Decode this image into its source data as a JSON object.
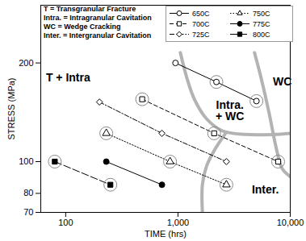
{
  "chart_data": {
    "type": "line",
    "xlabel": "TIME (hrs)",
    "ylabel": "STRESS (MPa)",
    "log": true,
    "grid": false,
    "legend": "top-right",
    "xlim": [
      60,
      10000
    ],
    "xticks": [
      100,
      {
        "value": 1000,
        "label": "1,000"
      },
      {
        "value": 10000,
        "label": "10,000"
      }
    ],
    "ylim": [
      70,
      300
    ],
    "yticks": [
      70,
      80,
      100,
      200
    ],
    "key": [
      "T = Transgranular Fracture",
      "Intra. = Intragranular Cavitation",
      "WC = Wedge Cracking",
      "Inter. = Intergranular Cavitation"
    ],
    "series": [
      {
        "name": "650C",
        "color": "#000000",
        "marker": "open-circle",
        "line_style": "solid",
        "x": [
          950,
          2200,
          5000
        ],
        "values": [
          200,
          175,
          153
        ],
        "circled": [
          false,
          true,
          true
        ]
      },
      {
        "name": "700C",
        "color": "#000000",
        "marker": "open-square",
        "line_style": "dashed",
        "x": [
          480,
          2100,
          7800
        ],
        "values": [
          155,
          122,
          100
        ],
        "circled": [
          true,
          true,
          true
        ]
      },
      {
        "name": "725C",
        "color": "#000000",
        "marker": "open-diamond",
        "line_style": "dashdot",
        "x": [
          200,
          720,
          2700
        ],
        "values": [
          152,
          122,
          100
        ],
        "circled": [
          false,
          false,
          false
        ]
      },
      {
        "name": "750C",
        "color": "#000000",
        "marker": "open-triangle",
        "line_style": "dotted",
        "x": [
          230,
          850,
          2700
        ],
        "values": [
          122,
          100,
          85
        ],
        "circled": [
          true,
          true,
          true
        ]
      },
      {
        "name": "775C",
        "color": "#000000",
        "marker": "filled-circle",
        "line_style": "solid",
        "x": [
          230,
          720
        ],
        "values": [
          100,
          85
        ],
        "circled": [
          false,
          false
        ]
      },
      {
        "name": "800C",
        "color": "#000000",
        "marker": "filled-square",
        "line_style": "longdash",
        "x": [
          80,
          250
        ],
        "values": [
          100,
          85
        ],
        "circled": [
          true,
          true
        ]
      }
    ],
    "boundaries": [
      {
        "color": "#b3b3b3",
        "x": [
          1050,
          1200,
          1400,
          1800,
          2500,
          4000,
          7000,
          10000
        ],
        "y": [
          215,
          180,
          155,
          135,
          124,
          121,
          121,
          122
        ]
      },
      {
        "color": "#b3b3b3",
        "x": [
          4800,
          5500,
          6500,
          7500,
          8500,
          10000
        ],
        "y": [
          215,
          180,
          140,
          110,
          95,
          90
        ]
      },
      {
        "color": "#b3b3b3",
        "x": [
          2700,
          2100,
          1800,
          1650,
          1650
        ],
        "y": [
          123,
          108,
          97,
          85,
          70
        ]
      }
    ],
    "annotations": [
      {
        "text": "T + Intra",
        "x": 105,
        "y": 180
      },
      {
        "text": "Intra.\n+ WC",
        "x": 2900,
        "y": 143
      },
      {
        "text": "WC",
        "x": 8500,
        "y": 175
      },
      {
        "text": "Inter.",
        "x": 6000,
        "y": 82
      }
    ]
  }
}
